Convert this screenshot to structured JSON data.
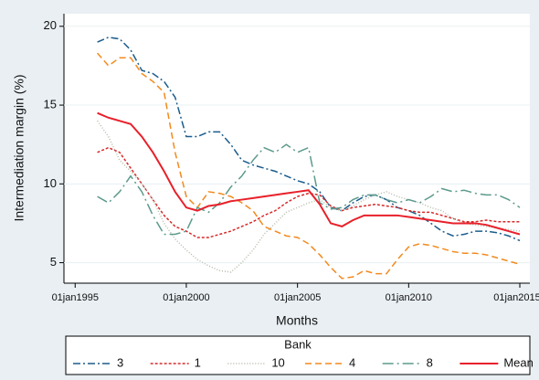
{
  "chart_data": {
    "type": "line",
    "y_label": "Intermediation margin (%)",
    "x_label": "Months",
    "legend_title": "Bank",
    "legend_position": "bottom",
    "grid": true,
    "x": [
      "1996-01-01",
      "1996-07-01",
      "1997-01-01",
      "1997-07-01",
      "1998-01-01",
      "1998-07-01",
      "1999-01-01",
      "1999-07-01",
      "2000-01-01",
      "2000-07-01",
      "2001-01-01",
      "2001-07-01",
      "2002-01-01",
      "2002-07-01",
      "2003-01-01",
      "2003-07-01",
      "2004-01-01",
      "2004-07-01",
      "2005-01-01",
      "2005-07-01",
      "2006-01-01",
      "2006-07-01",
      "2007-01-01",
      "2007-07-01",
      "2008-01-01",
      "2008-07-01",
      "2009-01-01",
      "2009-07-01",
      "2010-01-01",
      "2010-07-01",
      "2011-01-01",
      "2011-07-01",
      "2012-01-01",
      "2012-07-01",
      "2013-01-01",
      "2013-07-01",
      "2014-01-01",
      "2014-07-01",
      "2015-01-01"
    ],
    "xlim": [
      "1994-07-01",
      "2015-06-15"
    ],
    "xticks": [
      {
        "value": "1995-01-01",
        "label": "01jan1995"
      },
      {
        "value": "2000-01-01",
        "label": "01jan2000"
      },
      {
        "value": "2005-01-01",
        "label": "01jan2005"
      },
      {
        "value": "2010-01-01",
        "label": "01jan2010"
      },
      {
        "value": "2015-01-01",
        "label": "01jan2015"
      }
    ],
    "ylim": [
      3.7,
      20.8
    ],
    "yticks": [
      5,
      10,
      15,
      20
    ],
    "series": [
      {
        "name": "3",
        "color": "#1b5c8c",
        "values": [
          19.0,
          19.3,
          19.2,
          18.5,
          17.2,
          17.0,
          16.5,
          15.5,
          13.0,
          13.0,
          13.3,
          13.3,
          12.5,
          11.5,
          11.2,
          11.0,
          10.8,
          10.5,
          10.2,
          10.0,
          9.5,
          8.5,
          8.3,
          8.8,
          9.2,
          9.3,
          9.0,
          8.5,
          8.3,
          8.0,
          7.5,
          7.0,
          6.7,
          6.8,
          7.0,
          7.0,
          6.9,
          6.7,
          6.4
        ]
      },
      {
        "name": "1",
        "color": "#d62a2a",
        "values": [
          12.0,
          12.3,
          12.0,
          11.0,
          10.0,
          9.0,
          8.0,
          7.3,
          7.0,
          6.6,
          6.6,
          6.8,
          7.0,
          7.3,
          7.6,
          8.0,
          8.3,
          8.8,
          9.2,
          9.4,
          9.3,
          8.6,
          8.3,
          8.5,
          8.6,
          8.7,
          8.6,
          8.5,
          8.3,
          8.2,
          8.2,
          8.0,
          7.8,
          7.6,
          7.6,
          7.7,
          7.6,
          7.6,
          7.6
        ]
      },
      {
        "name": "10",
        "color": "#b3bcaa",
        "values": [
          14.0,
          13.0,
          11.5,
          10.8,
          10.0,
          9.0,
          7.5,
          6.5,
          5.8,
          5.2,
          4.8,
          4.5,
          4.4,
          5.0,
          5.8,
          6.8,
          7.5,
          8.2,
          8.5,
          8.8,
          9.0,
          8.5,
          8.3,
          8.6,
          9.0,
          9.3,
          9.5,
          9.2,
          9.0,
          8.8,
          8.5,
          8.3,
          7.8,
          7.5,
          7.4,
          7.3,
          7.2,
          7.1,
          7.0
        ]
      },
      {
        "name": "4",
        "color": "#f28a1e",
        "values": [
          18.3,
          17.5,
          18.0,
          18.0,
          17.0,
          16.5,
          15.8,
          12.0,
          9.2,
          8.5,
          9.5,
          9.4,
          9.2,
          8.8,
          8.3,
          7.3,
          7.0,
          6.7,
          6.6,
          6.2,
          5.5,
          4.7,
          4.0,
          4.1,
          4.5,
          4.3,
          4.3,
          5.2,
          6.0,
          6.2,
          6.1,
          5.9,
          5.7,
          5.6,
          5.6,
          5.5,
          5.3,
          5.1,
          4.9
        ]
      },
      {
        "name": "8",
        "color": "#5c9a8c",
        "values": [
          9.2,
          8.8,
          9.5,
          10.5,
          9.5,
          8.0,
          6.8,
          6.8,
          7.0,
          8.5,
          8.2,
          8.8,
          9.8,
          10.5,
          11.5,
          12.3,
          12.0,
          12.5,
          12.0,
          12.3,
          8.8,
          8.4,
          8.5,
          9.0,
          9.3,
          9.3,
          9.0,
          8.8,
          9.0,
          8.8,
          9.2,
          9.7,
          9.5,
          9.6,
          9.4,
          9.3,
          9.3,
          9.0,
          8.5
        ]
      },
      {
        "name": "Mean",
        "color": "#e8202a",
        "values": [
          14.5,
          14.2,
          14.0,
          13.8,
          13.0,
          12.0,
          10.8,
          9.5,
          8.5,
          8.3,
          8.6,
          8.7,
          8.9,
          9.0,
          9.1,
          9.2,
          9.3,
          9.4,
          9.5,
          9.6,
          8.7,
          7.5,
          7.3,
          7.7,
          8.0,
          8.0,
          8.0,
          8.0,
          7.9,
          7.8,
          7.7,
          7.6,
          7.5,
          7.5,
          7.5,
          7.4,
          7.2,
          7.0,
          6.8
        ]
      }
    ]
  }
}
